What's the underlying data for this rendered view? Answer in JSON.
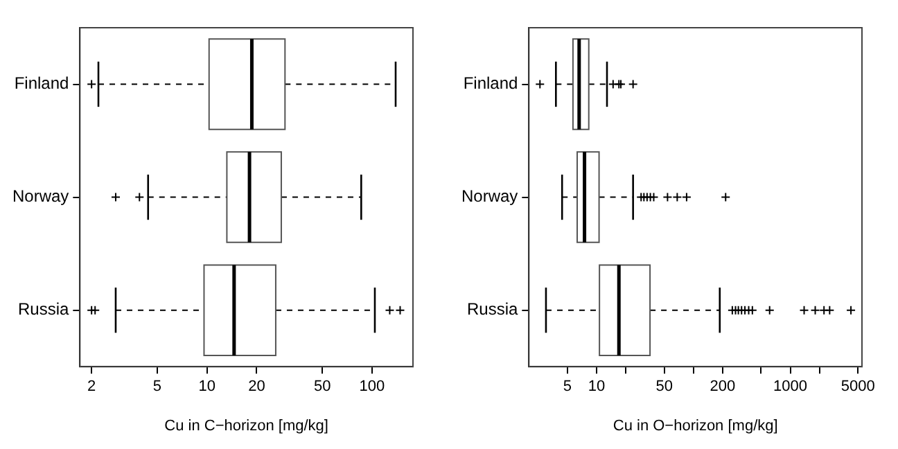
{
  "chart_data": [
    {
      "type": "box",
      "orientation": "horizontal",
      "categories": [
        "Finland",
        "Norway",
        "Russia"
      ],
      "xlabel": "Cu in C−horizon [mg/kg]",
      "log": "x",
      "xlim": [
        1.7,
        177
      ],
      "xticks": [
        2,
        5,
        10,
        20,
        50,
        100
      ],
      "grid": false,
      "legend": false,
      "marker": "cross",
      "boxes": [
        {
          "low": 2.2,
          "q1": 10.3,
          "median": 18.7,
          "q3": 29.7,
          "high": 139,
          "outliers": [
            2.0
          ]
        },
        {
          "low": 4.4,
          "q1": 13.2,
          "median": 18.1,
          "q3": 28.2,
          "high": 86,
          "outliers": [
            2.8,
            3.9
          ]
        },
        {
          "low": 2.8,
          "q1": 9.6,
          "median": 14.6,
          "q3": 26.1,
          "high": 104,
          "outliers": [
            2.0,
            2.1,
            128,
            148
          ]
        }
      ]
    },
    {
      "type": "box",
      "orientation": "horizontal",
      "categories": [
        "Finland",
        "Norway",
        "Russia"
      ],
      "xlabel": "Cu in O−horizon [mg/kg]",
      "log": "x",
      "xlim": [
        2,
        5500
      ],
      "xticks": [
        5,
        10,
        {
          "value": 20,
          "label": null
        },
        50,
        {
          "value": 100,
          "label": null
        },
        200,
        {
          "value": 500,
          "label": null
        },
        1000,
        {
          "value": 2000,
          "label": null
        },
        5000
      ],
      "grid": false,
      "legend": false,
      "marker": "cross",
      "boxes": [
        {
          "low": 3.8,
          "q1": 5.7,
          "median": 6.6,
          "q3": 8.3,
          "high": 12.8,
          "outliers": [
            2.6,
            14.8,
            17,
            17.8,
            23.8
          ]
        },
        {
          "low": 4.4,
          "q1": 6.3,
          "median": 7.5,
          "q3": 10.6,
          "high": 23.8,
          "outliers": [
            28.8,
            30.8,
            33.2,
            35.9,
            38.9,
            54,
            68,
            85,
            215
          ]
        },
        {
          "low": 3.0,
          "q1": 10.7,
          "median": 17,
          "q3": 35.6,
          "high": 187,
          "outliers": [
            252,
            272,
            291,
            314,
            340,
            372,
            406,
            612,
            1390,
            1810,
            2230,
            2550,
            4230
          ]
        }
      ]
    }
  ]
}
